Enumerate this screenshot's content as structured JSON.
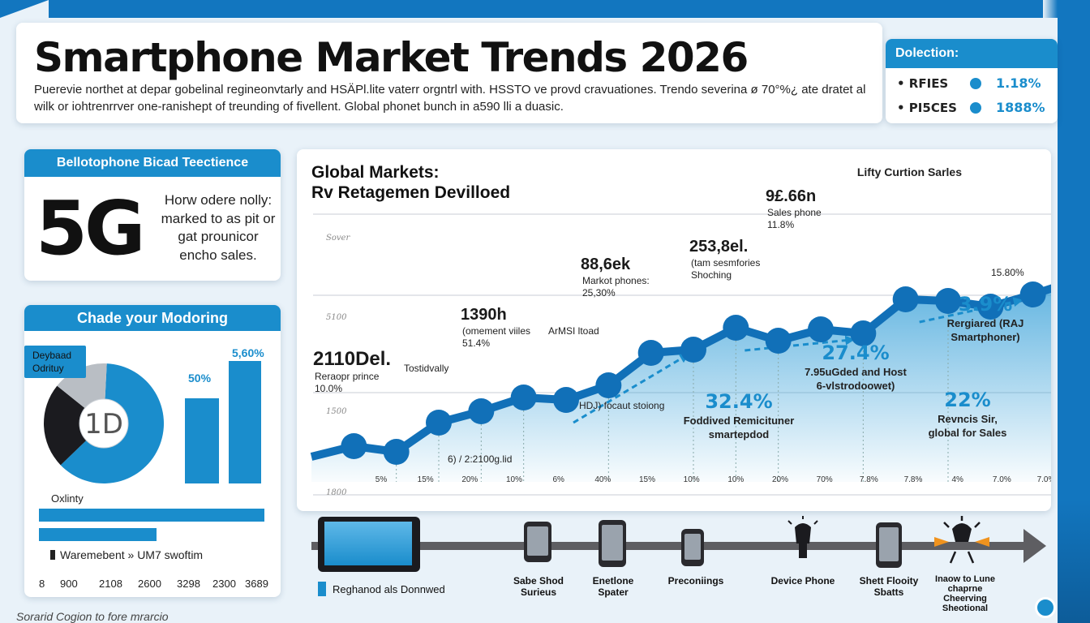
{
  "title": "Smartphone Market Trends 2026",
  "subtitle": "Puerevie northet at depar gobelinal regineonvtarly and HSÄPl.lite vaterr orgntrl with. HSSTO ve provd cravuationes. Trendo severina ø 70°%¿ ate dratet al wilk or iohtrenrrver one-ranishept of treunding of fivellent. Global phonet bunch in a590 lli a duasic.",
  "legend": {
    "heading": "Dolection:",
    "rows": [
      {
        "label": "• RFIES",
        "value": "1.18%"
      },
      {
        "label": "• PI5CES",
        "value": "1888%"
      }
    ]
  },
  "card_5g": {
    "heading": "Bellotophone Bicad Teectience",
    "big": "5G",
    "desc": "Horw odere nolly: marked to as pit or gat prounicor encho sales."
  },
  "card_mod": {
    "heading": "Chade your Modoring",
    "tag": "Deybaad Odrituy",
    "donut_center": "1D",
    "donut_shares": [
      0.62,
      0.23,
      0.15
    ],
    "bar_labels": [
      "50%",
      "5,60%"
    ],
    "bar_values": [
      50,
      72
    ],
    "quality_label": "Oxlinty",
    "hbar_values": [
      100,
      52
    ],
    "hbar_label": "Waremebent »  UM7 swoftim",
    "x_ticks": [
      "8",
      "900",
      "2108",
      "2600",
      "3298",
      "2300",
      "3689"
    ]
  },
  "chart_data": {
    "type": "line",
    "title": "Global Markets:",
    "subtitle": "Rv Retagemen Devilloed",
    "legend_label": "Lifty Curtion Sarles",
    "y_tick_labels": [
      "Sover",
      "5100",
      "1500",
      "1800"
    ],
    "x_tick_labels": [
      "5%",
      "15%",
      "20%",
      "10%",
      "6%",
      "40%",
      "15%",
      "10%",
      "10%",
      "20%",
      "70%",
      "7.8%",
      "7.8%",
      "4%",
      "7.0%",
      "7.0%"
    ],
    "series": [
      {
        "values": [
          31,
          44,
          37,
          73,
          87,
          104,
          101,
          119,
          159,
          163,
          190,
          174,
          188,
          183,
          225,
          223,
          216,
          231,
          248
        ]
      },
      {
        "values": [
          13,
          8,
          9,
          6,
          8,
          9,
          9,
          6,
          5,
          10,
          11,
          2,
          13,
          16,
          17,
          15,
          18,
          18,
          24
        ]
      }
    ],
    "annotations": [
      {
        "big": "2110Del.",
        "small": "Reraopr prince\n10.0%"
      },
      {
        "big": "",
        "small": "Tostidvally"
      },
      {
        "big": "1390h",
        "small": "(omement viiles\n51.4%"
      },
      {
        "big": "",
        "small": "6) / 2:2100g.lid"
      },
      {
        "big": "88,6ek",
        "small": "Markot phones:\n25,30%"
      },
      {
        "big": "",
        "small": "ArMSI ltoad"
      },
      {
        "big": "",
        "small": "HDJ) focaut stoiong"
      },
      {
        "big": "253,8el.",
        "small": "(tam sesmfories\nShoching"
      },
      {
        "big": "9£.66n",
        "small": "Sales phone\n11.8%"
      },
      {
        "big": "",
        "small": "15.80%"
      }
    ],
    "stat_callouts": [
      {
        "value": "32.4%",
        "label": "Foddived Remicituner smartepdod"
      },
      {
        "value": "27.4%",
        "label": "7.95uGded and Host 6-vlstrodoowet)"
      },
      {
        "value": "3.9%",
        "label": "Rergiared (RAJ Smartphoner)"
      },
      {
        "value": "22%",
        "label": "Revncis Sir, global for Sales"
      }
    ]
  },
  "timeline": {
    "legend": "Reghanod als Donnwed",
    "labels": [
      "Sabe Shod Surieus",
      "Enetlone Spater",
      "Preconiings",
      "Device Phone",
      "Shett Flooity Sbatts",
      "Inaow to Lune chaprne Cheerving Sheotional"
    ]
  },
  "footnote": "Sorarid Cogion to fore mrarcio",
  "colors": {
    "accent": "#1a8dcc",
    "line_main": "#1170b8",
    "dark": "#1b1b1f"
  }
}
